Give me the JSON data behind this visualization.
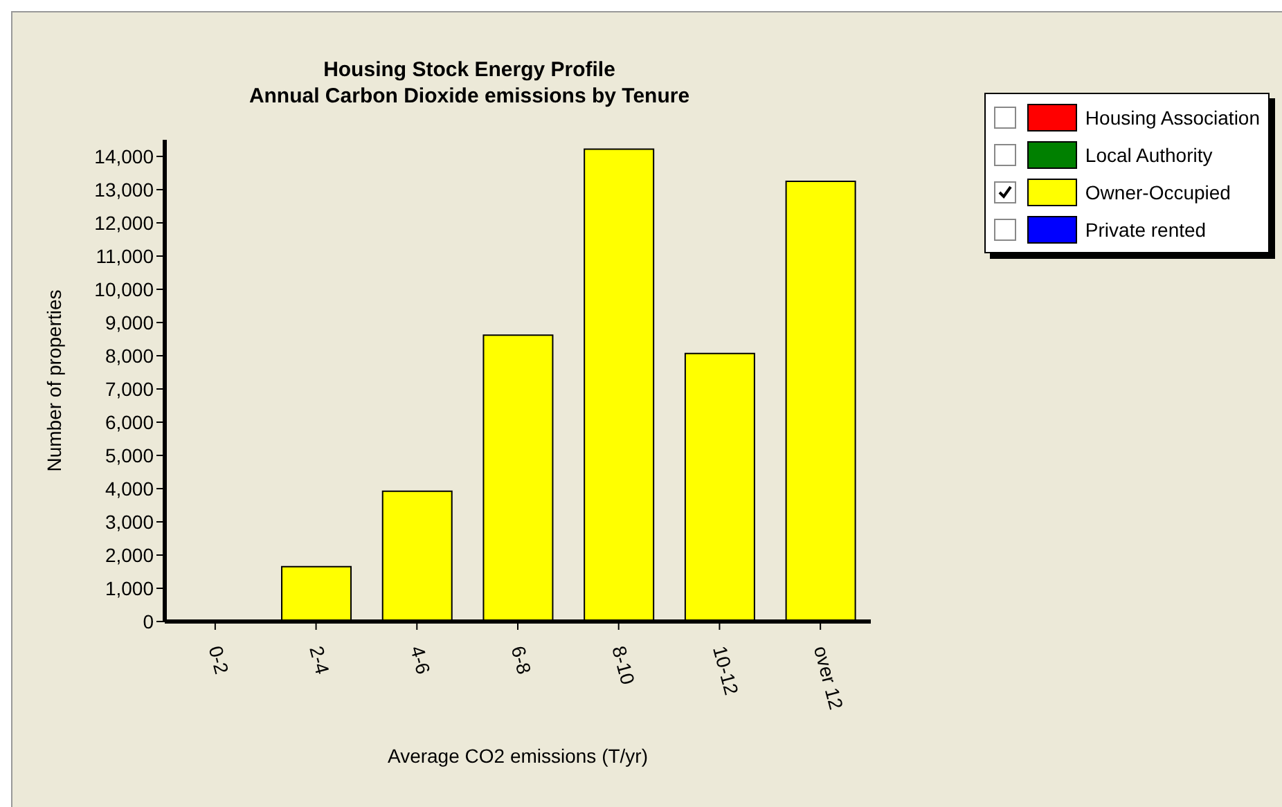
{
  "chart_data": {
    "type": "bar",
    "title": "Housing Stock Energy Profile\nAnnual Carbon Dioxide emissions by Tenure",
    "xlabel": "Average CO2 emissions (T/yr)",
    "ylabel": "Number of properties",
    "categories": [
      "0-2",
      "2-4",
      "4-6",
      "6-8",
      "8-10",
      "10-12",
      "over 12"
    ],
    "series": [
      {
        "name": "Housing Association",
        "color": "#ff0000",
        "values": [
          null,
          null,
          null,
          null,
          null,
          null,
          null
        ]
      },
      {
        "name": "Local Authority",
        "color": "#008000",
        "values": [
          null,
          null,
          null,
          null,
          null,
          null,
          null
        ]
      },
      {
        "name": "Owner-Occupied",
        "color": "#ffff00",
        "values": [
          30,
          1650,
          3920,
          8620,
          14220,
          8070,
          13250
        ]
      },
      {
        "name": "Private rented",
        "color": "#0000ff",
        "values": [
          null,
          null,
          null,
          null,
          null,
          null,
          null
        ]
      }
    ],
    "ylim": [
      0,
      14500
    ],
    "yticks": [
      0,
      {
        "value": 1000,
        "label": "1,000"
      },
      {
        "value": 2000,
        "label": "2,000"
      },
      {
        "value": 3000,
        "label": "3,000"
      },
      {
        "value": 4000,
        "label": "4,000"
      },
      {
        "value": 5000,
        "label": "5,000"
      },
      {
        "value": 6000,
        "label": "6,000"
      },
      {
        "value": 7000,
        "label": "7,000"
      },
      {
        "value": 8000,
        "label": "8,000"
      },
      {
        "value": 9000,
        "label": "9,000"
      },
      {
        "value": 10000,
        "label": "10,000"
      },
      {
        "value": 11000,
        "label": "11,000"
      },
      {
        "value": 12000,
        "label": "12,000"
      },
      {
        "value": 13000,
        "label": "13,000"
      },
      {
        "value": 14000,
        "label": "14,000"
      }
    ],
    "grid": false,
    "legend": "top right"
  }
}
